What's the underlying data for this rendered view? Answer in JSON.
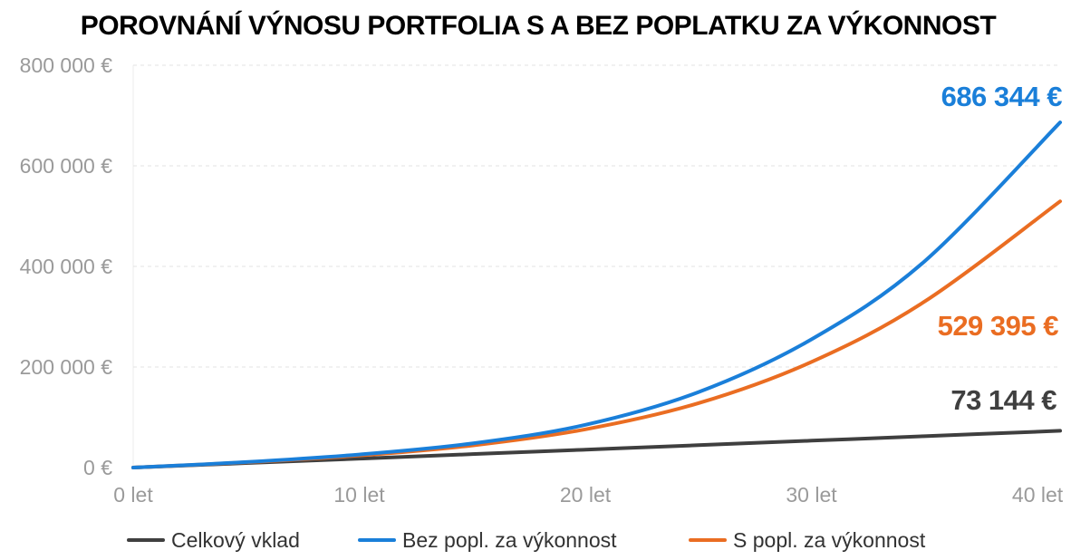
{
  "chart_data": {
    "type": "line",
    "title": "POROVNÁNÍ VÝNOSU PORTFOLIA S A BEZ POPLATKU ZA VÝKONNOST",
    "xlabel": "",
    "ylabel": "",
    "xlim": [
      0,
      41
    ],
    "ylim": [
      0,
      800000
    ],
    "grid": true,
    "legend_position": "bottom",
    "x_ticks": [
      {
        "value": 0,
        "label": "0 let"
      },
      {
        "value": 10,
        "label": "10 let"
      },
      {
        "value": 20,
        "label": "20 let"
      },
      {
        "value": 30,
        "label": "30 let"
      },
      {
        "value": 40,
        "label": "40 let"
      }
    ],
    "y_ticks": [
      {
        "value": 0,
        "label": "0 €"
      },
      {
        "value": 200000,
        "label": "200 000 €"
      },
      {
        "value": 400000,
        "label": "400 000 €"
      },
      {
        "value": 600000,
        "label": "600 000 €"
      },
      {
        "value": 800000,
        "label": "800 000 €"
      }
    ],
    "x": [
      0,
      5,
      10,
      15,
      20,
      25,
      30,
      35,
      41
    ],
    "series": [
      {
        "name": "Celkový vklad",
        "color": "#3f3f3f",
        "values": [
          0,
          8900,
          17800,
          26700,
          35600,
          44500,
          53500,
          62400,
          73144
        ],
        "end_label": "73 144 €"
      },
      {
        "name": "Bez popl. za výkonnost",
        "color": "#1a7fd9",
        "values": [
          0,
          11000,
          26000,
          48000,
          85000,
          150000,
          255000,
          410000,
          686344
        ],
        "end_label": "686 344 €"
      },
      {
        "name": "S popl. za výkonnost",
        "color": "#ea6d22",
        "values": [
          0,
          10500,
          24000,
          44000,
          76000,
          128000,
          210000,
          330000,
          529395
        ],
        "end_label": "529 395 €"
      }
    ]
  }
}
